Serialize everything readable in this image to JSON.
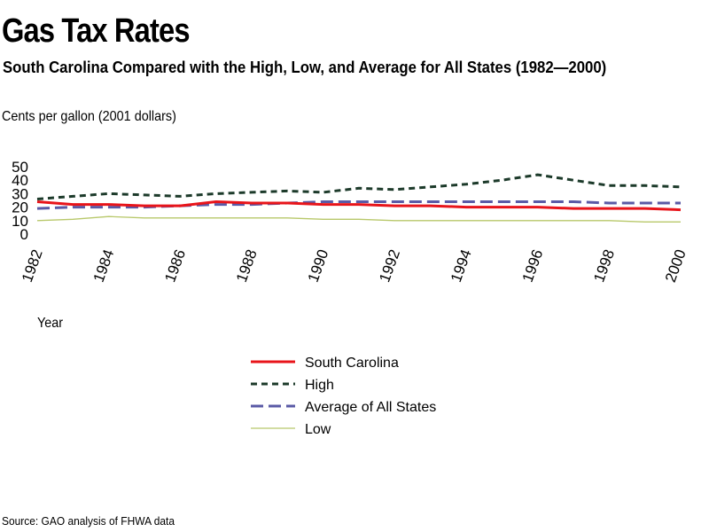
{
  "page": {
    "title": "Gas Tax Rates",
    "subtitle": "South Carolina Compared with the High, Low, and Average for All States (1982—2000)",
    "source": "Source: GAO analysis of FHWA data"
  },
  "chart_data": {
    "type": "line",
    "title": "Gas Tax Rates",
    "subtitle": "South Carolina Compared with the High, Low, and Average for All States (1982—2000)",
    "ylabel": "Cents per gallon (2001 dollars)",
    "xlabel": "Year",
    "ylim": [
      0,
      50
    ],
    "yticks": [
      0,
      10,
      20,
      30,
      40,
      50
    ],
    "xlim": [
      1982,
      2000
    ],
    "xticks": [
      "1982",
      "1984",
      "1986",
      "1988",
      "1990",
      "1992",
      "1994",
      "1996",
      "1998",
      "2000"
    ],
    "grid": false,
    "legend_position": "bottom-center",
    "x": [
      1982,
      1983,
      1984,
      1985,
      1986,
      1987,
      1988,
      1989,
      1990,
      1991,
      1992,
      1993,
      1994,
      1995,
      1996,
      1997,
      1998,
      1999,
      2000
    ],
    "series": [
      {
        "name": "South Carolina",
        "color": "#e8141a",
        "dash": "solid",
        "values": [
          24,
          22,
          22,
          21,
          21,
          24,
          23,
          23,
          22,
          22,
          21,
          21,
          20,
          20,
          20,
          19,
          19,
          19,
          18
        ]
      },
      {
        "name": "High",
        "color": "#1c3a2a",
        "dash": "dotted",
        "values": [
          26,
          28,
          30,
          29,
          28,
          30,
          31,
          32,
          31,
          34,
          33,
          35,
          37,
          40,
          44,
          40,
          36,
          36,
          35
        ]
      },
      {
        "name": "Average of All States",
        "color": "#5a5aa6",
        "dash": "dashed",
        "values": [
          19,
          20,
          20,
          20,
          21,
          22,
          22,
          23,
          24,
          24,
          24,
          24,
          24,
          24,
          24,
          24,
          23,
          23,
          23
        ]
      },
      {
        "name": "Low",
        "color": "#b8c86a",
        "dash": "solid",
        "values": [
          10,
          11,
          13,
          12,
          12,
          12,
          12,
          12,
          11,
          11,
          10,
          10,
          10,
          10,
          10,
          10,
          10,
          9,
          9
        ]
      }
    ]
  }
}
